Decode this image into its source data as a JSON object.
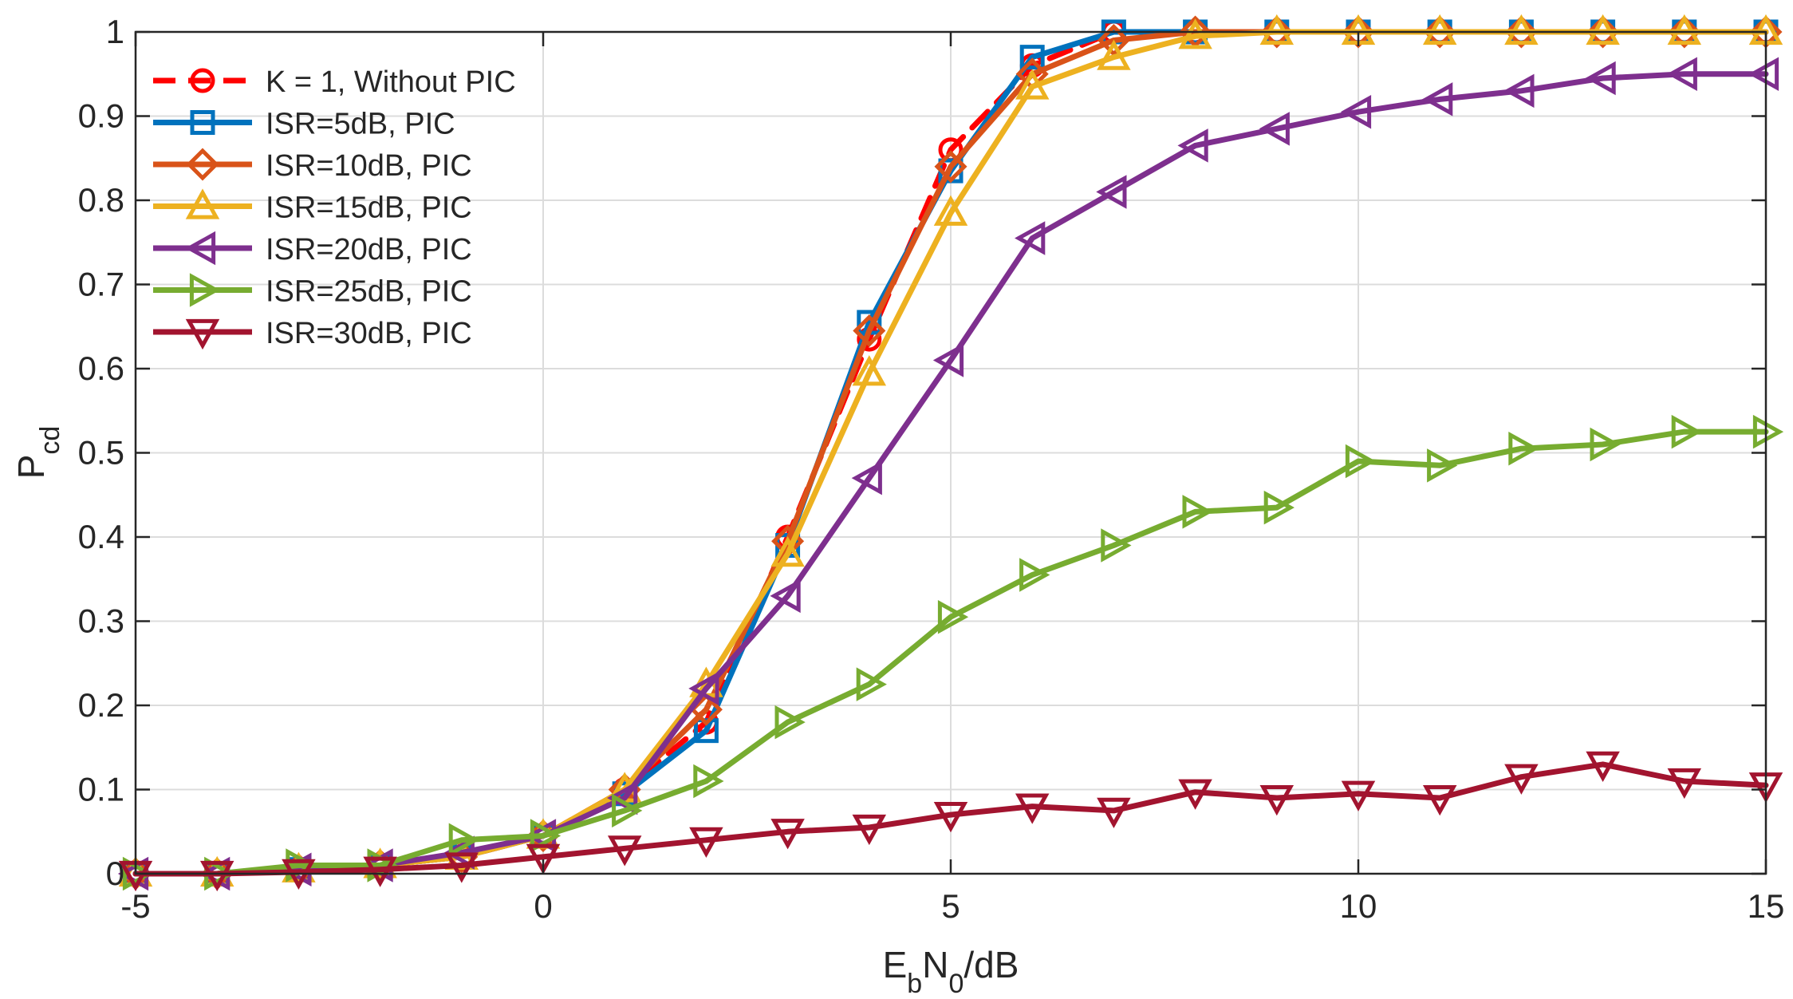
{
  "chart_data": {
    "type": "line",
    "title": "",
    "xlabel": {
      "main": "E",
      "sub1": "b",
      "mid": "N",
      "sub2": "0",
      "tail": "/dB"
    },
    "ylabel": {
      "main": "P",
      "sub": "cd"
    },
    "xlim": [
      -5,
      15
    ],
    "ylim": [
      0,
      1
    ],
    "grid": true,
    "legend": "top-left",
    "xticks": [
      {
        "value": -5,
        "label": "-5"
      },
      {
        "value": 0,
        "label": "0"
      },
      {
        "value": 5,
        "label": "5"
      },
      {
        "value": 10,
        "label": "10"
      },
      {
        "value": 15,
        "label": "15"
      }
    ],
    "yticks": [
      {
        "value": 0,
        "label": "0"
      },
      {
        "value": 0.1,
        "label": "0.1"
      },
      {
        "value": 0.2,
        "label": "0.2"
      },
      {
        "value": 0.3,
        "label": "0.3"
      },
      {
        "value": 0.4,
        "label": "0.4"
      },
      {
        "value": 0.5,
        "label": "0.5"
      },
      {
        "value": 0.6,
        "label": "0.6"
      },
      {
        "value": 0.7,
        "label": "0.7"
      },
      {
        "value": 0.8,
        "label": "0.8"
      },
      {
        "value": 0.9,
        "label": "0.9"
      },
      {
        "value": 1,
        "label": "1"
      }
    ],
    "x": [
      -5,
      -4,
      -3,
      -2,
      -1,
      0,
      1,
      2,
      3,
      4,
      5,
      6,
      7,
      8,
      9,
      10,
      11,
      12,
      13,
      14,
      15
    ],
    "series": [
      {
        "name": "K = 1, Without PIC",
        "color": "#ff0000",
        "dash": true,
        "marker": "circle",
        "values": [
          0,
          0,
          0.005,
          0.01,
          0.02,
          0.045,
          0.1,
          0.18,
          0.4,
          0.635,
          0.86,
          0.96,
          1.0,
          1.0,
          1.0,
          1.0,
          1.0,
          1.0,
          1.0,
          1.0,
          1.0
        ]
      },
      {
        "name": "ISR=5dB, PIC",
        "color": "#0072bd",
        "dash": false,
        "marker": "square",
        "values": [
          0,
          0,
          0.005,
          0.01,
          0.02,
          0.045,
          0.095,
          0.17,
          0.39,
          0.655,
          0.835,
          0.97,
          1.0,
          1.0,
          1.0,
          1.0,
          1.0,
          1.0,
          1.0,
          1.0,
          1.0
        ]
      },
      {
        "name": "ISR=10dB, PIC",
        "color": "#d95319",
        "dash": false,
        "marker": "diamond",
        "values": [
          0,
          0,
          0.005,
          0.01,
          0.02,
          0.045,
          0.1,
          0.195,
          0.395,
          0.645,
          0.84,
          0.95,
          0.99,
          1.0,
          1.0,
          1.0,
          1.0,
          1.0,
          1.0,
          1.0,
          1.0
        ]
      },
      {
        "name": "ISR=15dB, PIC",
        "color": "#edb120",
        "dash": false,
        "marker": "triangle-up",
        "values": [
          0,
          0,
          0.005,
          0.01,
          0.02,
          0.045,
          0.1,
          0.225,
          0.38,
          0.595,
          0.785,
          0.935,
          0.97,
          0.995,
          1.0,
          1.0,
          1.0,
          1.0,
          1.0,
          1.0,
          1.0
        ]
      },
      {
        "name": "ISR=20dB, PIC",
        "color": "#7e2f8e",
        "dash": false,
        "marker": "triangle-left",
        "values": [
          0,
          0,
          0.005,
          0.01,
          0.025,
          0.045,
          0.09,
          0.22,
          0.33,
          0.47,
          0.61,
          0.755,
          0.81,
          0.865,
          0.885,
          0.905,
          0.92,
          0.93,
          0.945,
          0.95,
          0.95
        ]
      },
      {
        "name": "ISR=25dB, PIC",
        "color": "#77ac30",
        "dash": false,
        "marker": "triangle-right",
        "values": [
          0,
          0,
          0.01,
          0.01,
          0.04,
          0.045,
          0.075,
          0.11,
          0.18,
          0.225,
          0.305,
          0.355,
          0.39,
          0.43,
          0.435,
          0.49,
          0.485,
          0.505,
          0.51,
          0.525,
          0.525
        ]
      },
      {
        "name": "ISR=30dB, PIC",
        "color": "#a2142f",
        "dash": false,
        "marker": "triangle-down",
        "values": [
          0,
          0,
          0.002,
          0.005,
          0.01,
          0.02,
          0.03,
          0.04,
          0.05,
          0.055,
          0.07,
          0.08,
          0.075,
          0.097,
          0.09,
          0.095,
          0.09,
          0.115,
          0.13,
          0.11,
          0.105
        ]
      }
    ]
  }
}
